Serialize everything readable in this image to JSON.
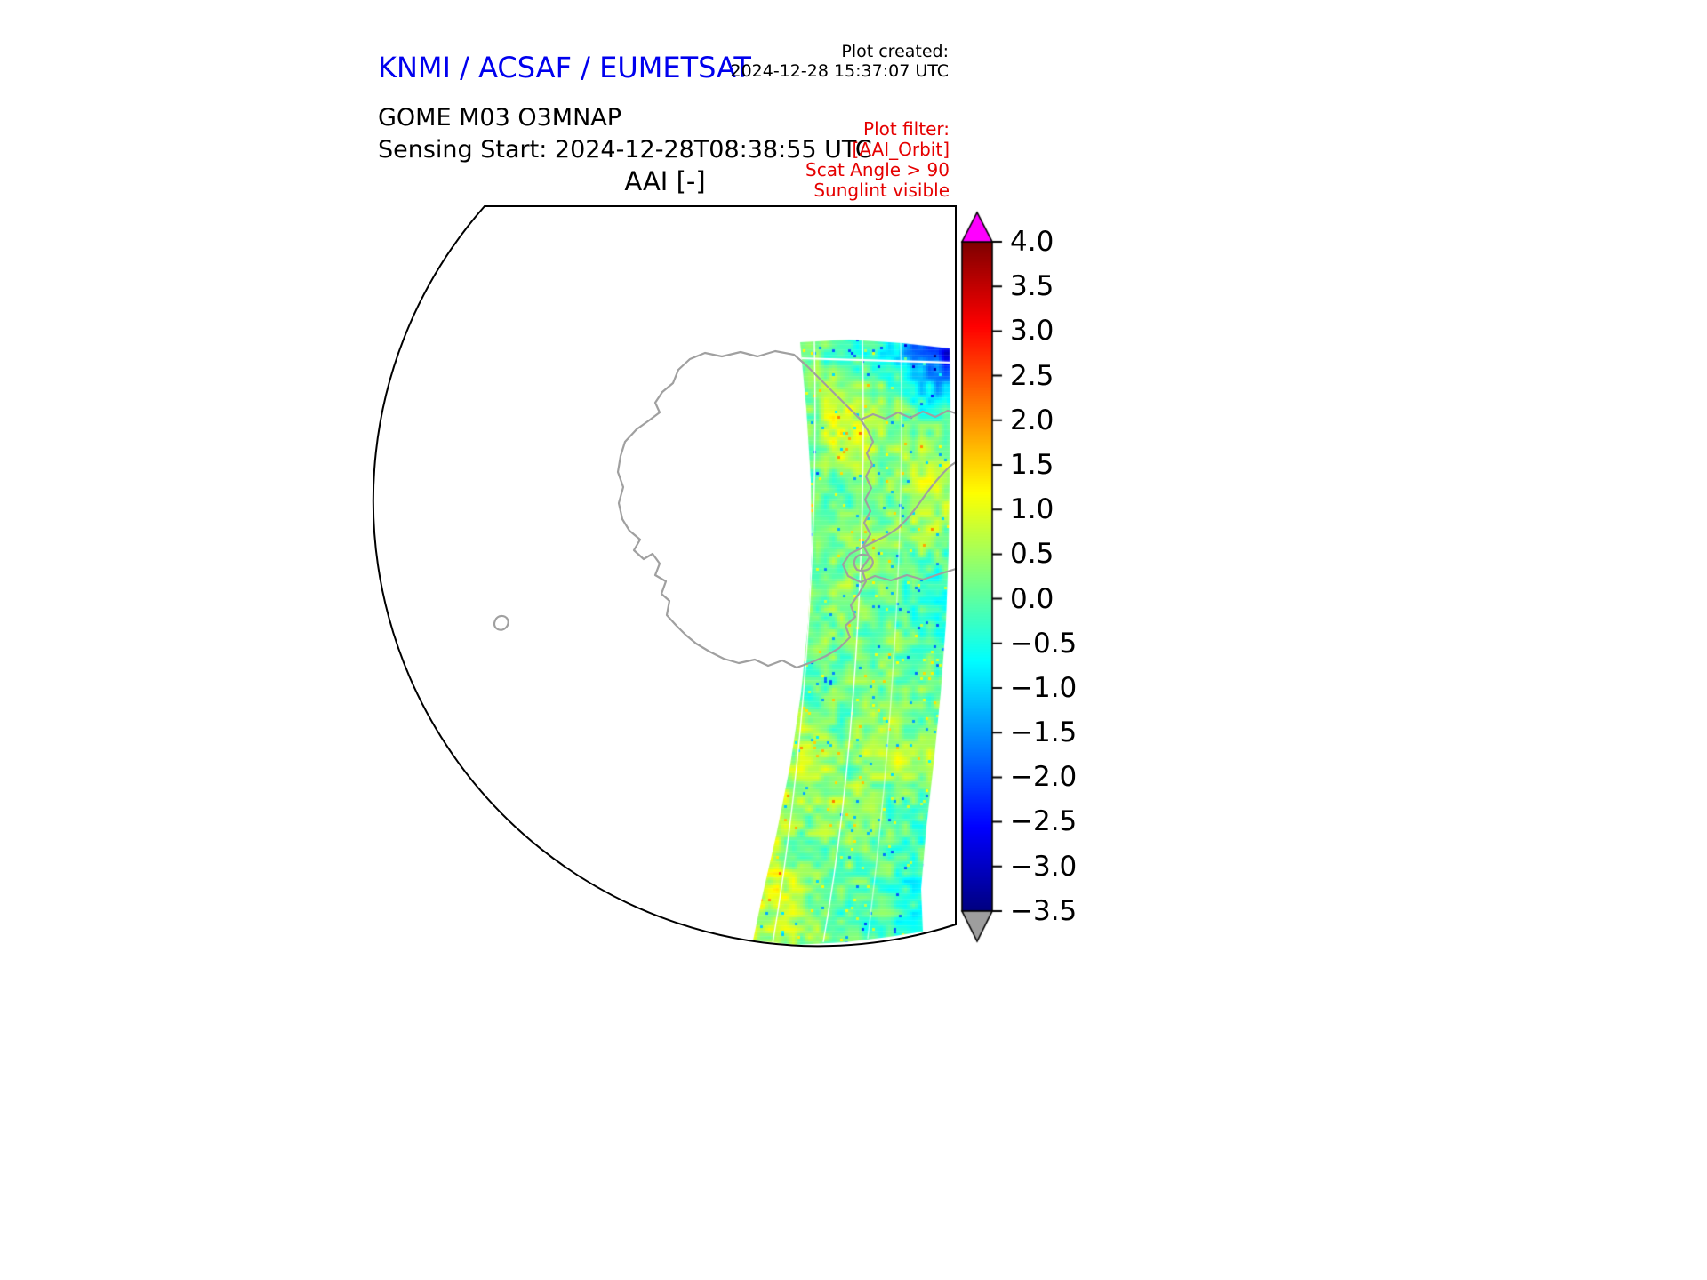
{
  "header": {
    "organization": "KNMI / ACSAF / EUMETSAT",
    "organization_color": "#0000ee",
    "created_label": "Plot created:",
    "created_timestamp": "2024-12-28 15:37:07 UTC",
    "product_line": "GOME M03 O3MNAP",
    "sensing_line": "Sensing Start: 2024-12-28T08:38:55 UTC",
    "plot_title": "AAI [-]"
  },
  "filters": {
    "label": "Plot filter:",
    "items": [
      "[AAI_Orbit]",
      "Scat Angle > 90",
      "Sunglint visible"
    ],
    "color": "#e50000"
  },
  "colorbar": {
    "tick_labels": [
      "4.0",
      "3.5",
      "3.0",
      "2.5",
      "2.0",
      "1.5",
      "1.0",
      "0.5",
      "0.0",
      "−0.5",
      "−1.0",
      "−1.5",
      "−2.0",
      "−2.5",
      "−3.0",
      "−3.5"
    ],
    "over_color": "#ff00ff",
    "under_color": "#9e9e9e"
  },
  "chart_data": {
    "type": "heatmap",
    "subtype": "satellite-orbit-swath-on-polar-map",
    "title": "AAI [-]",
    "product": "GOME M03 O3MNAP",
    "sensing_start": "2024-12-28T08:38:55 UTC",
    "plot_created": "2024-12-28 15:37:07 UTC",
    "colormap": "jet",
    "value_range": [
      -3.5,
      4.0
    ],
    "tick_step": 0.5,
    "colorbar_ticks": [
      4.0,
      3.5,
      3.0,
      2.5,
      2.0,
      1.5,
      1.0,
      0.5,
      0.0,
      -0.5,
      -1.0,
      -1.5,
      -2.0,
      -2.5,
      -3.0,
      -3.5
    ],
    "over_range_color": "#ff00ff",
    "under_range_color": "#9e9e9e",
    "map": {
      "coastline_color": "#a0a0a0",
      "coastline_appearance": "Antarctica outline with small offshore island",
      "boundary": "circular hemisphere edge clipped at top and right"
    },
    "swath_summary": {
      "typical_value": 0.1,
      "regions": [
        {
          "appearance": "green",
          "approx_value": 0.2,
          "extent": "majority of swath"
        },
        {
          "appearance": "cyan",
          "approx_value": -0.7,
          "extent": "scattered patches"
        },
        {
          "appearance": "yellow",
          "approx_value": 1.0,
          "extent": "scattered streaks"
        },
        {
          "appearance": "dark blue",
          "approx_value": -2.5,
          "extent": "top right edge of swath"
        }
      ]
    }
  }
}
